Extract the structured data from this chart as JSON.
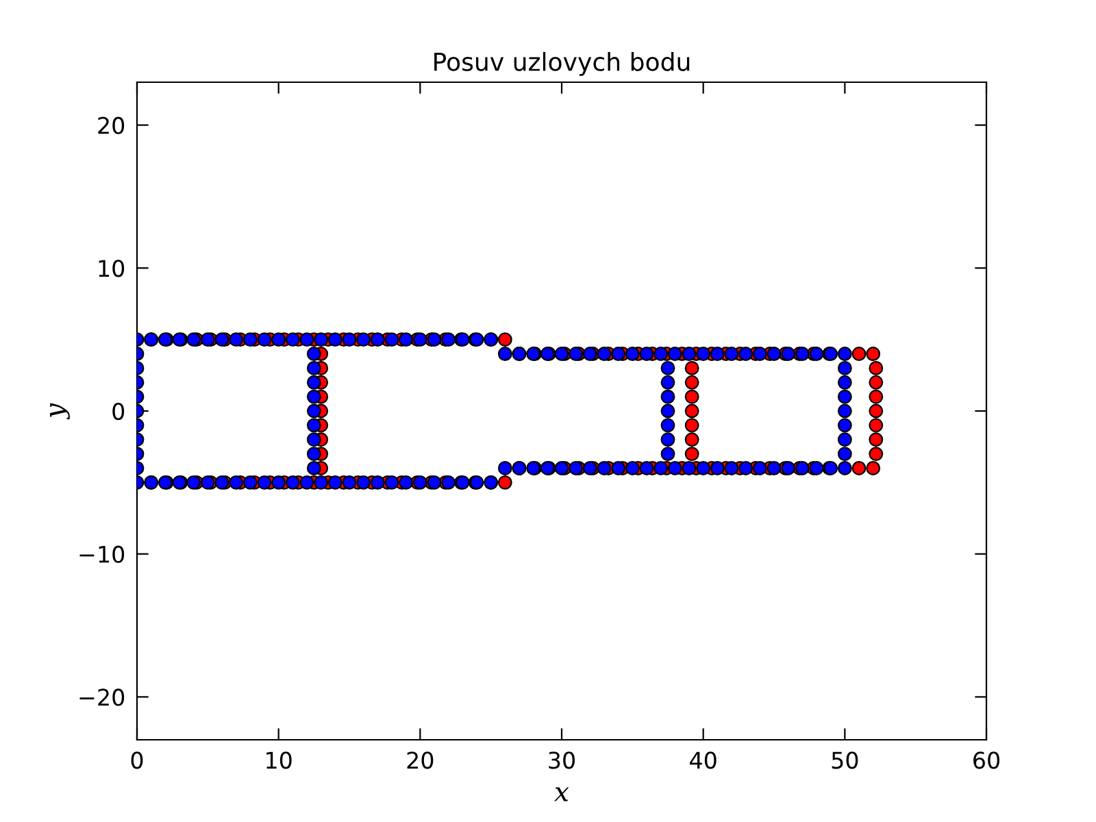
{
  "chart_data": {
    "type": "scatter",
    "title": "Posuv uzlovych bodu",
    "xlabel": "x",
    "ylabel": "y",
    "xlim": [
      0,
      60
    ],
    "ylim": [
      -23,
      23
    ],
    "xticks": [
      0,
      10,
      20,
      30,
      40,
      50,
      60
    ],
    "yticks": [
      {
        "value": -20,
        "label": "−20"
      },
      {
        "value": -10,
        "label": "−10"
      },
      0,
      10,
      20
    ],
    "grid": false,
    "marker": "circle",
    "series": [
      {
        "color": "#ff0000",
        "x": [
          1.0,
          2.1,
          3.1,
          4.2,
          5.2,
          6.2,
          7.3,
          8.3,
          9.4,
          10.4,
          11.4,
          12.5,
          13.5,
          14.6,
          15.6,
          16.6,
          17.7,
          18.7,
          19.8,
          20.8,
          21.8,
          22.9,
          23.9,
          25.0,
          26.0,
          1.0,
          2.1,
          3.1,
          4.2,
          5.2,
          6.2,
          7.3,
          8.3,
          9.4,
          10.4,
          11.4,
          12.5,
          13.5,
          14.6,
          15.6,
          16.6,
          17.7,
          18.7,
          19.8,
          20.8,
          21.8,
          22.9,
          23.9,
          25.0,
          26.0,
          13.0,
          13.0,
          13.0,
          13.0,
          13.0,
          13.0,
          13.0,
          13.0,
          13.0,
          27.0,
          28.1,
          29.1,
          30.2,
          31.2,
          32.2,
          33.3,
          34.3,
          35.4,
          36.4,
          37.4,
          38.5,
          39.5,
          40.6,
          41.6,
          42.6,
          43.7,
          44.7,
          45.8,
          46.8,
          47.8,
          48.9,
          51.0,
          52.0,
          27.0,
          28.1,
          29.1,
          30.2,
          31.2,
          32.2,
          33.3,
          34.3,
          35.4,
          36.4,
          37.4,
          38.5,
          39.5,
          40.6,
          41.6,
          42.6,
          43.7,
          44.7,
          45.8,
          46.8,
          47.8,
          48.9,
          51.0,
          52.0,
          39.2,
          39.2,
          39.2,
          39.2,
          39.2,
          39.2,
          39.2,
          52.2,
          52.2,
          52.2,
          52.2,
          52.2,
          52.2,
          52.2
        ],
        "values": [
          5,
          5,
          5,
          5,
          5,
          5,
          5,
          5,
          5,
          5,
          5,
          5,
          5,
          5,
          5,
          5,
          5,
          5,
          5,
          5,
          5,
          5,
          5,
          5,
          5,
          -5,
          -5,
          -5,
          -5,
          -5,
          -5,
          -5,
          -5,
          -5,
          -5,
          -5,
          -5,
          -5,
          -5,
          -5,
          -5,
          -5,
          -5,
          -5,
          -5,
          -5,
          -5,
          -5,
          -5,
          -5,
          -4,
          -3,
          -2,
          -1,
          0,
          1,
          2,
          3,
          4,
          4,
          4,
          4,
          4,
          4,
          4,
          4,
          4,
          4,
          4,
          4,
          4,
          4,
          4,
          4,
          4,
          4,
          4,
          4,
          4,
          4,
          4,
          4,
          4,
          -4,
          -4,
          -4,
          -4,
          -4,
          -4,
          -4,
          -4,
          -4,
          -4,
          -4,
          -4,
          -4,
          -4,
          -4,
          -4,
          -4,
          -4,
          -4,
          -4,
          -4,
          -4,
          -4,
          -4,
          -3,
          -2,
          -1,
          0,
          1,
          2,
          3,
          -3,
          -2,
          -1,
          0,
          1,
          2,
          3
        ]
      },
      {
        "color": "#0000ff",
        "x": [
          0,
          1,
          2,
          3,
          4,
          5,
          6,
          7,
          8,
          9,
          10,
          11,
          12,
          13,
          14,
          15,
          16,
          17,
          18,
          19,
          20,
          21,
          22,
          23,
          24,
          25,
          0,
          1,
          2,
          3,
          4,
          5,
          6,
          7,
          8,
          9,
          10,
          11,
          12,
          13,
          14,
          15,
          16,
          17,
          18,
          19,
          20,
          21,
          22,
          23,
          24,
          25,
          0,
          0,
          0,
          0,
          0,
          0,
          0,
          0,
          0,
          12.5,
          12.5,
          12.5,
          12.5,
          12.5,
          12.5,
          12.5,
          12.5,
          12.5,
          26,
          27,
          28,
          29,
          30,
          31,
          32,
          33,
          34,
          35,
          36,
          37,
          38,
          39,
          40,
          41,
          42,
          43,
          44,
          45,
          46,
          47,
          48,
          49,
          50,
          26,
          27,
          28,
          29,
          30,
          31,
          32,
          33,
          34,
          35,
          36,
          37,
          38,
          39,
          40,
          41,
          42,
          43,
          44,
          45,
          46,
          47,
          48,
          49,
          50,
          37.5,
          37.5,
          37.5,
          37.5,
          37.5,
          37.5,
          37.5,
          50,
          50,
          50,
          50,
          50,
          50,
          50
        ],
        "values": [
          5,
          5,
          5,
          5,
          5,
          5,
          5,
          5,
          5,
          5,
          5,
          5,
          5,
          5,
          5,
          5,
          5,
          5,
          5,
          5,
          5,
          5,
          5,
          5,
          5,
          5,
          -5,
          -5,
          -5,
          -5,
          -5,
          -5,
          -5,
          -5,
          -5,
          -5,
          -5,
          -5,
          -5,
          -5,
          -5,
          -5,
          -5,
          -5,
          -5,
          -5,
          -5,
          -5,
          -5,
          -5,
          -5,
          -5,
          -4,
          -3,
          -2,
          -1,
          0,
          1,
          2,
          3,
          4,
          -4,
          -3,
          -2,
          -1,
          0,
          1,
          2,
          3,
          4,
          4,
          4,
          4,
          4,
          4,
          4,
          4,
          4,
          4,
          4,
          4,
          4,
          4,
          4,
          4,
          4,
          4,
          4,
          4,
          4,
          4,
          4,
          4,
          4,
          4,
          -4,
          -4,
          -4,
          -4,
          -4,
          -4,
          -4,
          -4,
          -4,
          -4,
          -4,
          -4,
          -4,
          -4,
          -4,
          -4,
          -4,
          -4,
          -4,
          -4,
          -4,
          -4,
          -4,
          -4,
          -4,
          -3,
          -2,
          -1,
          0,
          1,
          2,
          3,
          -3,
          -2,
          -1,
          0,
          1,
          2,
          3
        ]
      }
    ]
  }
}
